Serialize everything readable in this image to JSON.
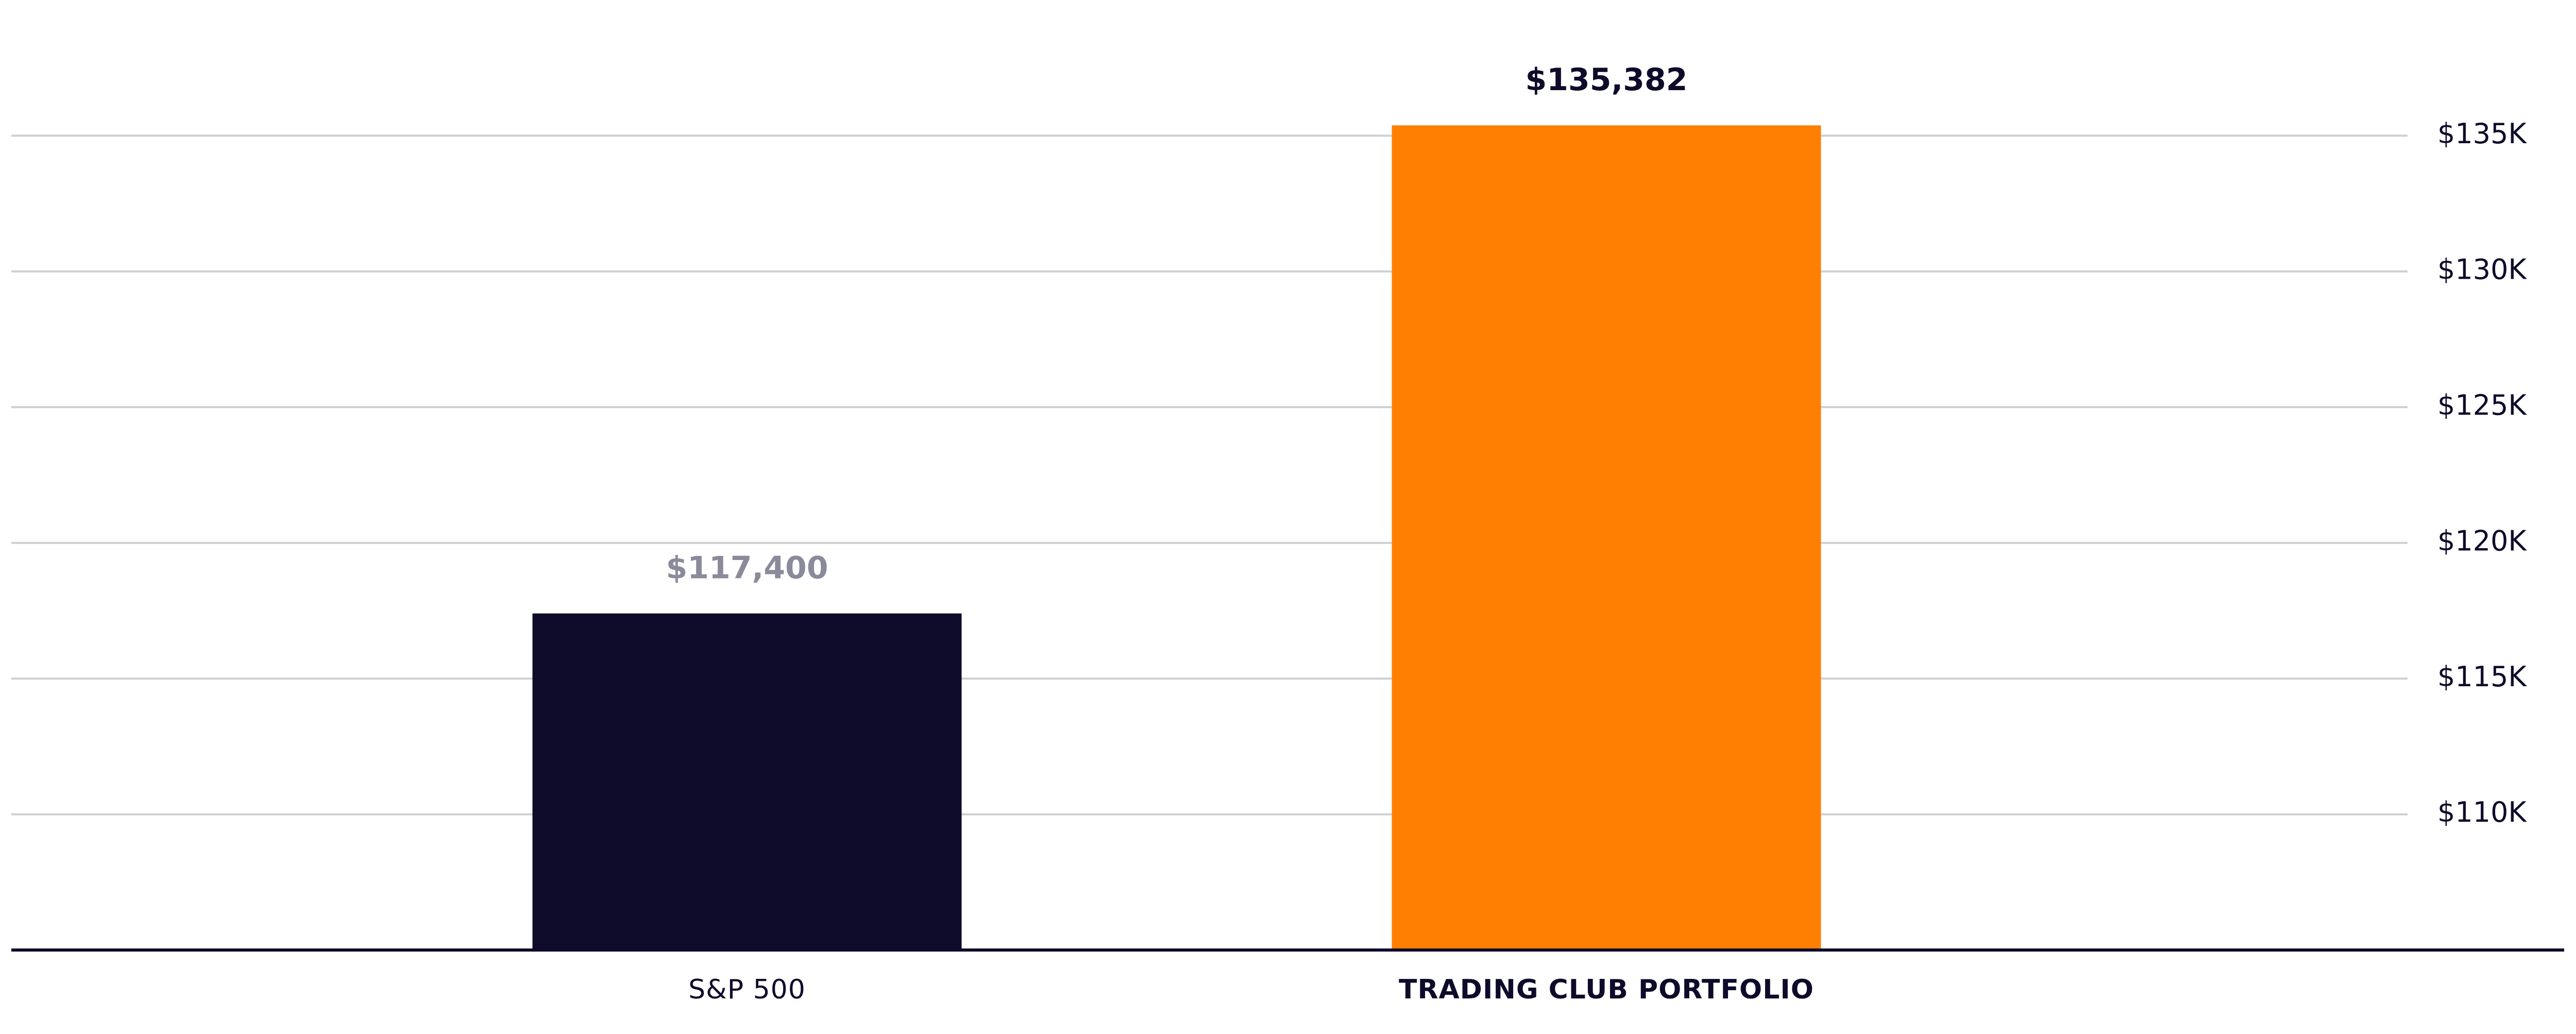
{
  "chart_data": {
    "type": "bar",
    "categories": [
      "S&P 500",
      "TRADING CLUB PORTFOLIO"
    ],
    "values": [
      117400,
      135382
    ],
    "value_labels": [
      "$117,400",
      "$135,382"
    ],
    "colors": [
      "#0e0b2a",
      "#ff7f02"
    ],
    "ylim": [
      105000,
      140000
    ],
    "yticks": [
      {
        "value": 110000,
        "label": "$110K"
      },
      {
        "value": 115000,
        "label": "$115K"
      },
      {
        "value": 120000,
        "label": "$120K"
      },
      {
        "value": 125000,
        "label": "$125K"
      },
      {
        "value": 130000,
        "label": "$130K"
      },
      {
        "value": 135000,
        "label": "$135K"
      }
    ],
    "grid": true
  }
}
